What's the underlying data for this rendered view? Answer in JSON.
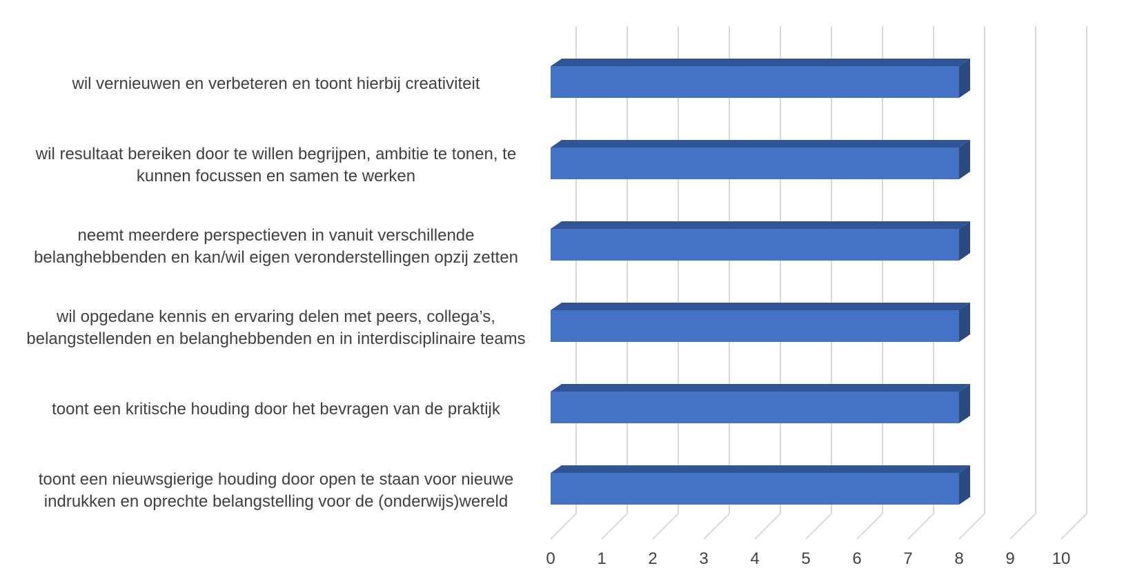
{
  "chart_data": {
    "type": "bar",
    "orientation": "horizontal",
    "style": "3d",
    "categories": [
      [
        "wil vernieuwen en verbeteren en toont hierbij creativiteit"
      ],
      [
        "wil resultaat bereiken door te willen begrijpen, ambitie te tonen, te",
        "kunnen focussen en samen te werken"
      ],
      [
        "neemt meerdere perspectieven in vanuit verschillende",
        "belanghebbenden en kan/wil eigen veronderstellingen opzij zetten"
      ],
      [
        "wil opgedane kennis en ervaring delen met peers, collega’s,",
        "belangstellenden en belanghebbenden en in interdisciplinaire teams"
      ],
      [
        "toont een kritische houding door het bevragen van de praktijk"
      ],
      [
        "toont een nieuwsgierige houding door open te staan voor nieuwe",
        "indrukken en oprechte belangstelling voor de (onderwijs)wereld"
      ]
    ],
    "values": [
      8,
      8,
      8,
      8,
      8,
      8
    ],
    "xlim": [
      0,
      10
    ],
    "xticks": [
      "0",
      "1",
      "2",
      "3",
      "4",
      "5",
      "6",
      "7",
      "8",
      "9",
      "10"
    ],
    "grid": true,
    "legend": "none",
    "title": "",
    "xlabel": "",
    "ylabel": "",
    "colors": {
      "bar_front": "#4472c4",
      "bar_top": "#2f5597",
      "bar_side": "#2a4a80",
      "grid": "#d9d9d9",
      "text": "#404040"
    }
  }
}
